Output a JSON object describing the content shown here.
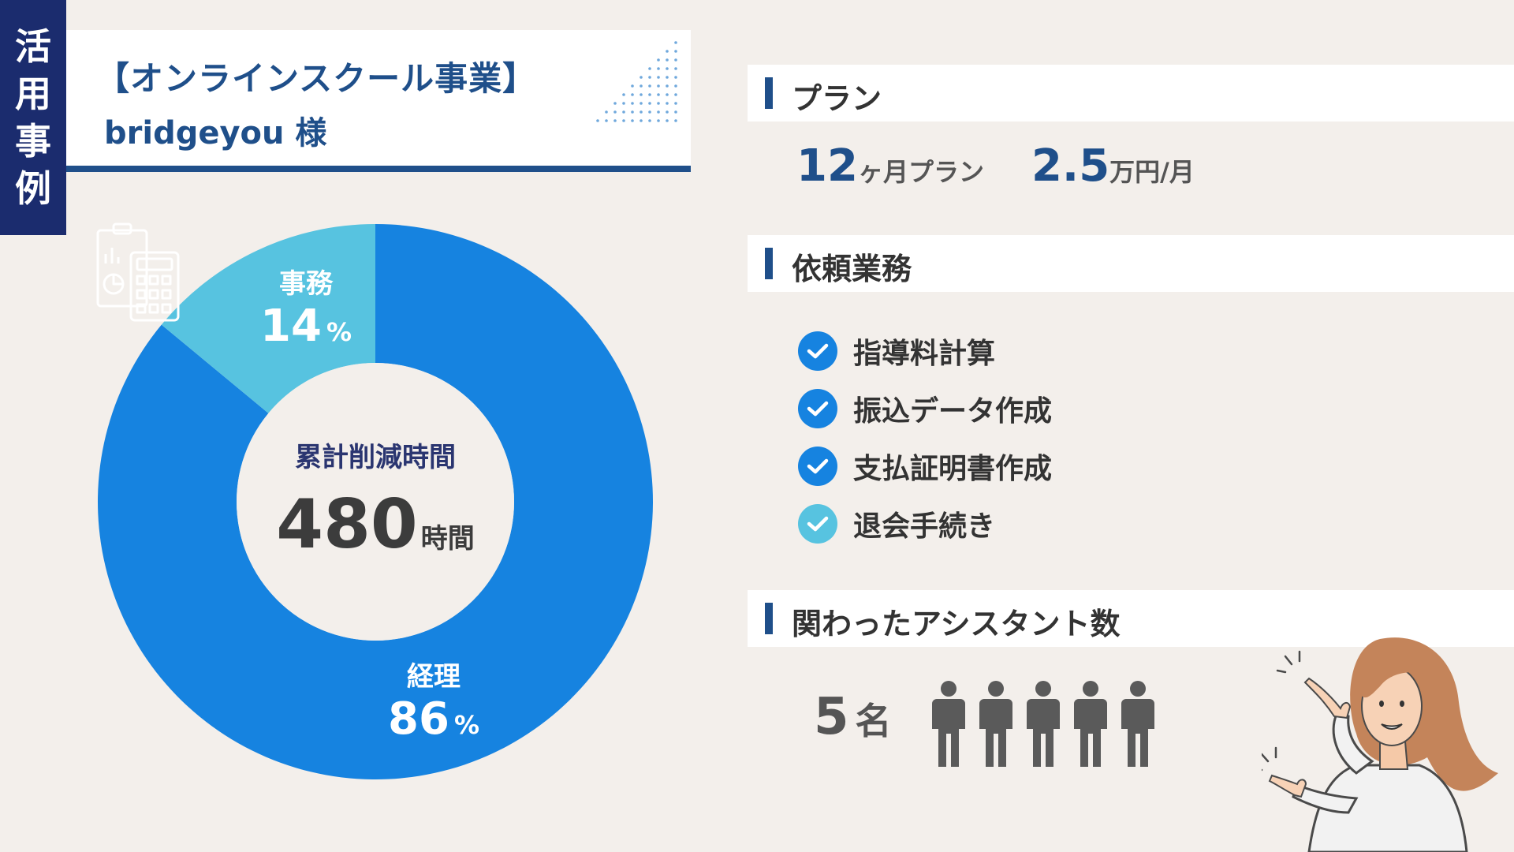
{
  "side_tab": {
    "chars": [
      "活",
      "用",
      "事",
      "例"
    ]
  },
  "title": {
    "line1": "【オンラインスクール事業】",
    "line2": "bridgeyou 様"
  },
  "chart_data": {
    "type": "pie",
    "title": "",
    "center_title": "累計削減時間",
    "center_value": "480",
    "center_unit": "時間",
    "slices": [
      {
        "name": "経理",
        "value": 86,
        "pct_label": "86",
        "color": "#1683e0"
      },
      {
        "name": "事務",
        "value": 14,
        "pct_label": "14",
        "color": "#57c3e0"
      }
    ],
    "pct_unit": "%"
  },
  "sections": {
    "plan": "プラン",
    "tasks": "依頼業務",
    "assistants": "関わったアシスタント数"
  },
  "plan": {
    "months": "12",
    "months_unit": "ヶ月プラン",
    "price": "2.5",
    "price_unit": "万円/月"
  },
  "tasks": [
    {
      "label": "指導料計算",
      "check_color": "#1683e0"
    },
    {
      "label": "振込データ作成",
      "check_color": "#1683e0"
    },
    {
      "label": "支払証明書作成",
      "check_color": "#1683e0"
    },
    {
      "label": "退会手続き",
      "check_color": "#57c3e0"
    }
  ],
  "assistant_count": {
    "number": "5",
    "unit": "名",
    "people_icons": 5
  },
  "colors": {
    "navy": "#1b2c6e",
    "blue": "#1f4f8a",
    "accent": "#1683e0",
    "light": "#57c3e0"
  }
}
